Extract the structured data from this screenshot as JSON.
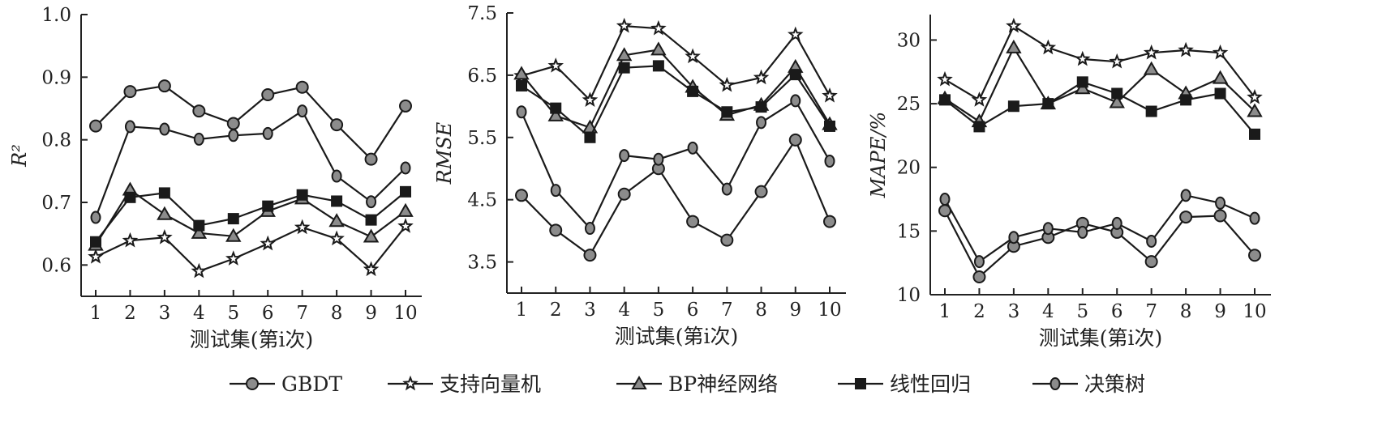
{
  "chart_data": [
    {
      "type": "line",
      "ylabel": "R²",
      "xlabel": "测试集(第i次)",
      "x": [
        1,
        2,
        3,
        4,
        5,
        6,
        7,
        8,
        9,
        10
      ],
      "ylim": [
        0.55,
        1.0
      ],
      "yticks": [
        "0.6",
        "0.7",
        "0.8",
        "0.9",
        "1.0"
      ],
      "series": [
        {
          "name": "GBDT",
          "values": [
            0.822,
            0.877,
            0.886,
            0.846,
            0.826,
            0.872,
            0.884,
            0.824,
            0.769,
            0.854
          ]
        },
        {
          "name": "支持向量机",
          "values": [
            0.613,
            0.639,
            0.644,
            0.59,
            0.61,
            0.634,
            0.66,
            0.642,
            0.593,
            0.662
          ]
        },
        {
          "name": "BP神经网络",
          "values": [
            0.632,
            0.72,
            0.681,
            0.651,
            0.646,
            0.686,
            0.706,
            0.67,
            0.645,
            0.686
          ]
        },
        {
          "name": "线性回归",
          "values": [
            0.637,
            0.708,
            0.715,
            0.663,
            0.674,
            0.694,
            0.712,
            0.702,
            0.672,
            0.717
          ]
        },
        {
          "name": "决策树",
          "values": [
            0.676,
            0.821,
            0.817,
            0.801,
            0.807,
            0.81,
            0.846,
            0.742,
            0.701,
            0.755
          ]
        }
      ]
    },
    {
      "type": "line",
      "ylabel": "RMSE",
      "xlabel": "测试集(第i次)",
      "x": [
        1,
        2,
        3,
        4,
        5,
        6,
        7,
        8,
        9,
        10
      ],
      "ylim": [
        3.0,
        7.5
      ],
      "yticks": [
        "3.5",
        "4.5",
        "5.5",
        "6.5",
        "7.5"
      ],
      "series": [
        {
          "name": "GBDT",
          "values": [
            4.57,
            4.01,
            3.61,
            4.59,
            5.0,
            4.15,
            3.85,
            4.63,
            5.46,
            4.15
          ]
        },
        {
          "name": "支持向量机",
          "values": [
            6.49,
            6.65,
            6.1,
            7.29,
            7.25,
            6.8,
            6.34,
            6.46,
            7.15,
            6.17
          ]
        },
        {
          "name": "BP神经网络",
          "values": [
            6.52,
            5.85,
            5.66,
            6.82,
            6.91,
            6.31,
            5.86,
            6.02,
            6.63,
            5.71
          ]
        },
        {
          "name": "线性回归",
          "values": [
            6.33,
            5.97,
            5.5,
            6.62,
            6.65,
            6.24,
            5.91,
            5.99,
            6.51,
            5.68
          ]
        },
        {
          "name": "决策树",
          "values": [
            5.91,
            4.65,
            4.04,
            5.21,
            5.15,
            5.33,
            4.67,
            5.74,
            6.09,
            5.12
          ]
        }
      ]
    },
    {
      "type": "line",
      "ylabel": "MAPE/%",
      "xlabel": "测试集(第i次)",
      "x": [
        1,
        2,
        3,
        4,
        5,
        6,
        7,
        8,
        9,
        10
      ],
      "ylim": [
        10,
        32
      ],
      "yticks": [
        "10",
        "15",
        "20",
        "25",
        "30"
      ],
      "series": [
        {
          "name": "GBDT",
          "values": [
            16.6,
            11.4,
            13.8,
            14.5,
            15.6,
            14.9,
            12.6,
            16.1,
            16.2,
            13.1
          ]
        },
        {
          "name": "支持向量机",
          "values": [
            26.9,
            25.3,
            31.1,
            29.4,
            28.5,
            28.3,
            29.0,
            29.2,
            29.0,
            25.5
          ]
        },
        {
          "name": "BP神经网络",
          "values": [
            25.4,
            23.6,
            29.4,
            25.0,
            26.2,
            25.1,
            27.7,
            25.8,
            27.0,
            24.4
          ]
        },
        {
          "name": "线性回归",
          "values": [
            25.3,
            23.2,
            24.8,
            25.0,
            26.7,
            25.8,
            24.4,
            25.3,
            25.8,
            22.6
          ]
        },
        {
          "name": "决策树",
          "values": [
            17.5,
            12.6,
            14.5,
            15.2,
            14.9,
            15.6,
            14.2,
            17.8,
            17.2,
            16.0
          ]
        }
      ]
    }
  ],
  "legend": {
    "items": [
      {
        "name": "GBDT",
        "marker": "circle"
      },
      {
        "name": "支持向量机",
        "marker": "star"
      },
      {
        "name": "BP神经网络",
        "marker": "triangle"
      },
      {
        "name": "线性回归",
        "marker": "square"
      },
      {
        "name": "决策树",
        "marker": "ellipse"
      }
    ]
  },
  "colors": {
    "line": "#1a1a1a",
    "marker_fill_gray": "#8c8c8c",
    "marker_fill_dark": "#1a1a1a",
    "axis": "#222222"
  }
}
